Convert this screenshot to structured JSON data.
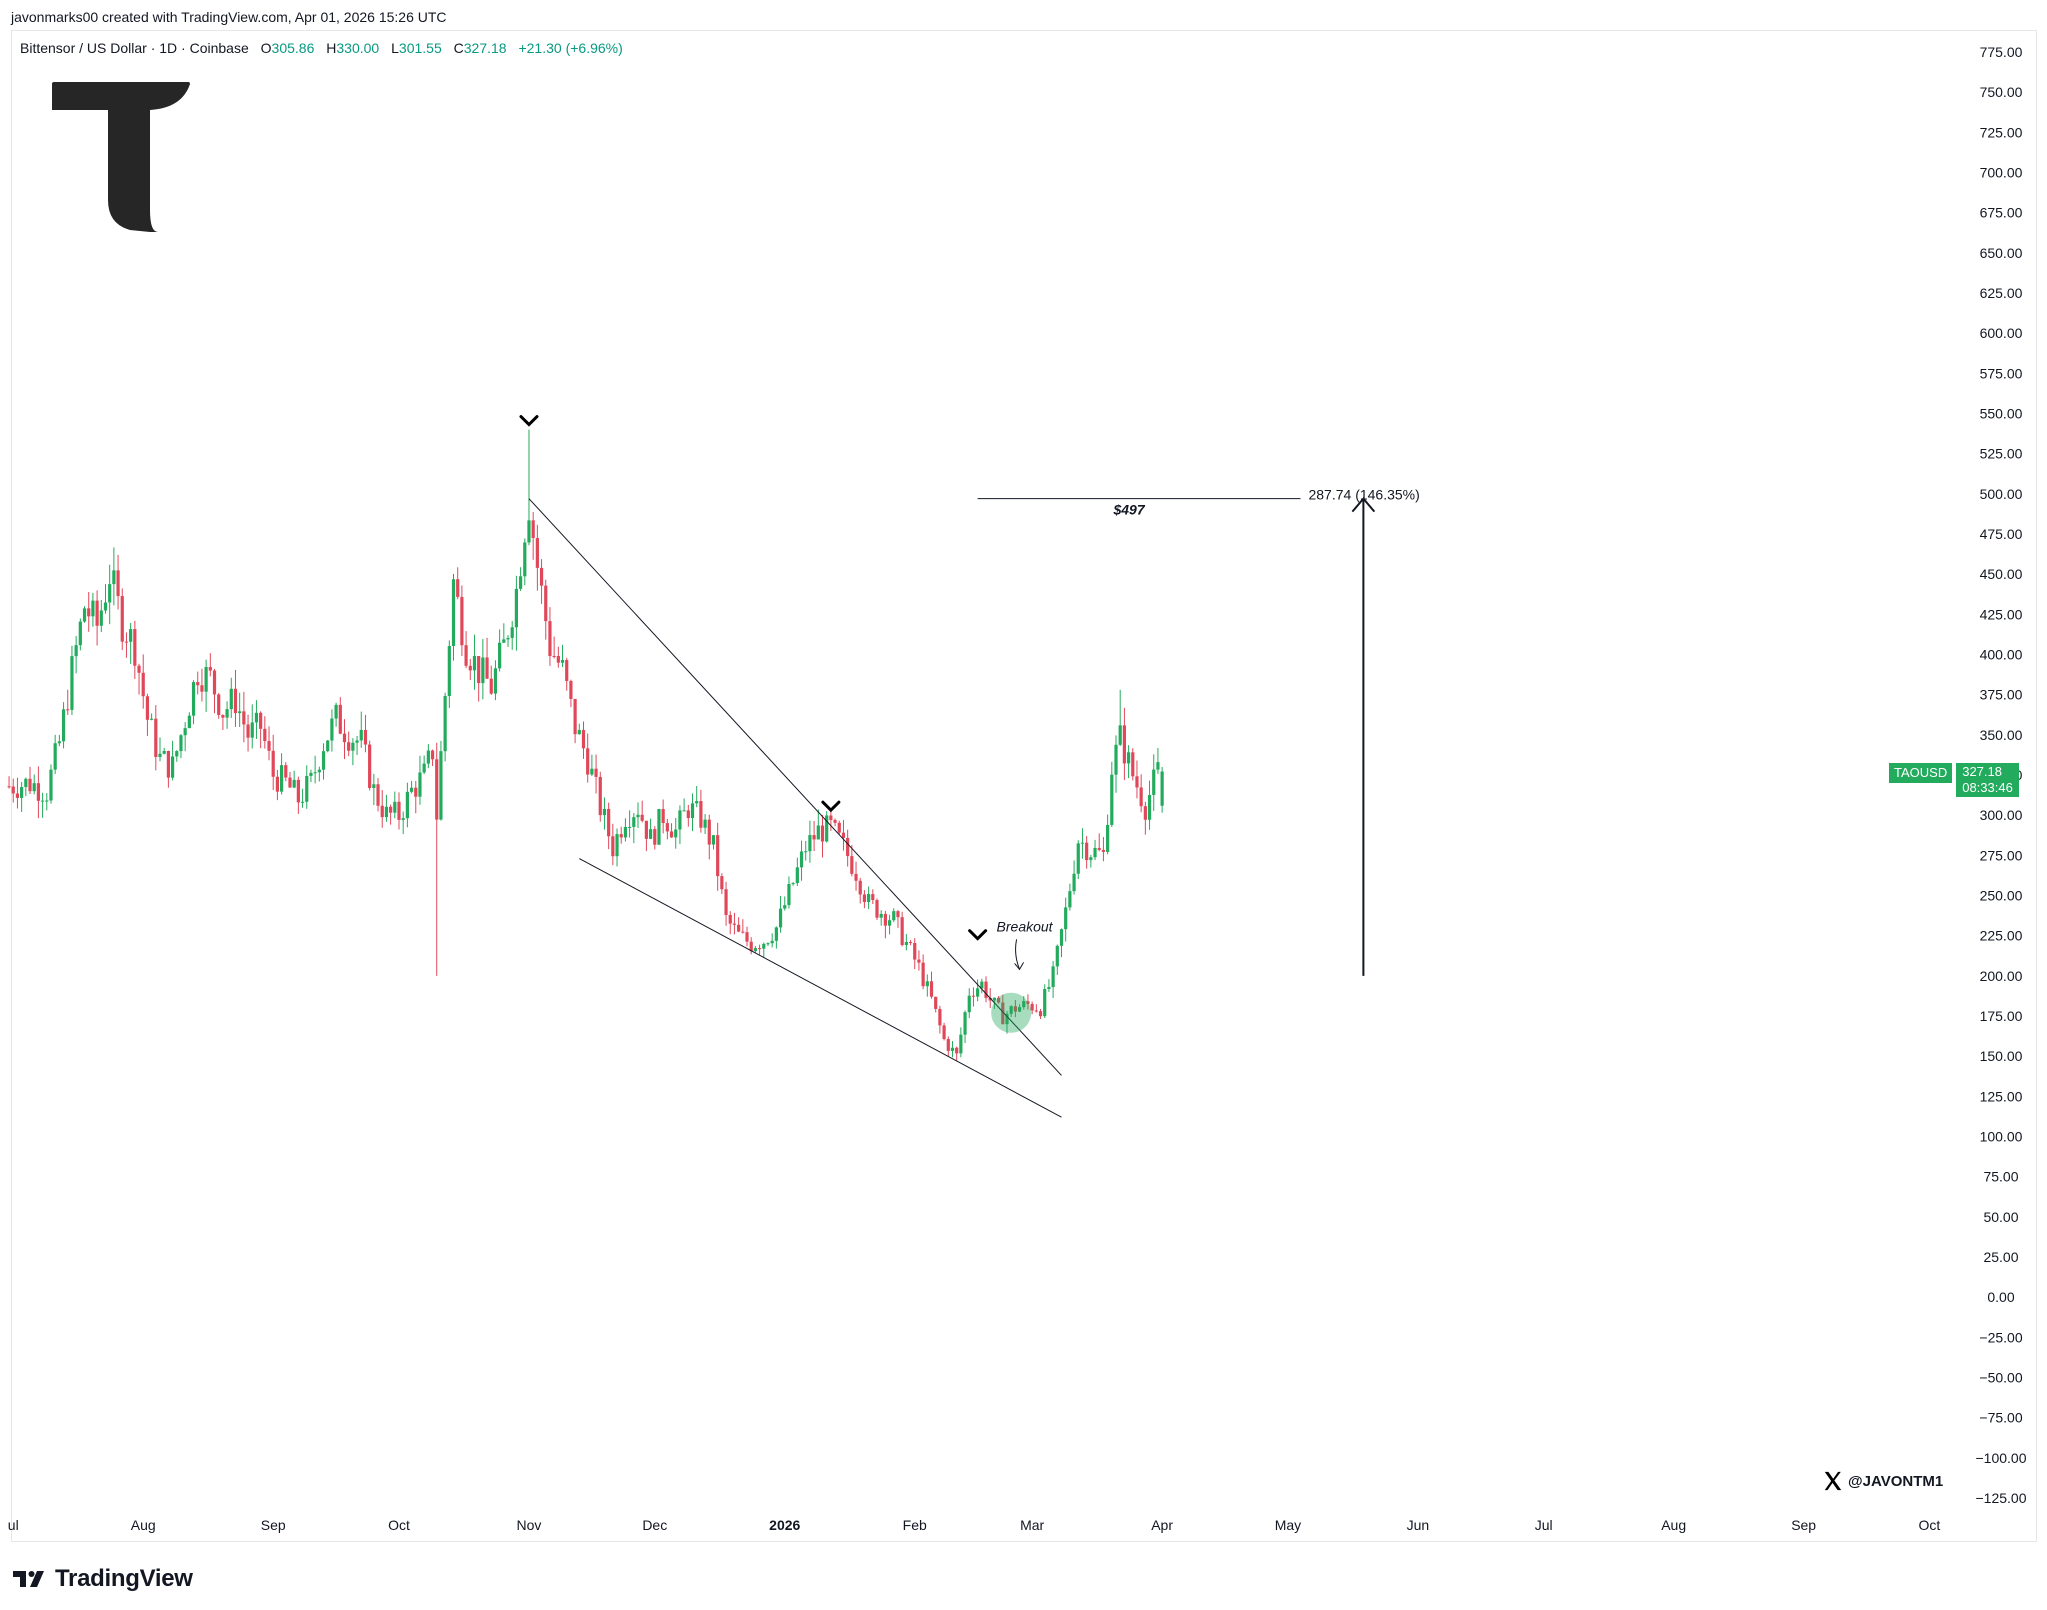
{
  "caption": "javonmarks00 created with TradingView.com, Apr 01, 2026 15:26 UTC",
  "legend": {
    "symbol": "Bittensor / US Dollar · 1D · Coinbase",
    "open_label": "O",
    "open": "305.86",
    "high_label": "H",
    "high": "330.00",
    "low_label": "L",
    "low": "301.55",
    "close_label": "C",
    "close": "327.18",
    "change": "+21.30 (+6.96%)"
  },
  "price_badge": {
    "symbol": "TAOUSD",
    "price": "327.18",
    "countdown": "08:33:46"
  },
  "watermark": {
    "handle": "@JAVONTM1",
    "icon": "x-logo-icon"
  },
  "footer": {
    "brand": "TradingView",
    "icon": "tradingview-logo-icon"
  },
  "brand_logo_icon": "t-logo-icon",
  "colors": {
    "up": "#22ab5c",
    "down": "#e0485a",
    "line": "#131722",
    "highlight": "#22ab5c"
  },
  "chart_data": {
    "type": "candlestick",
    "instrument": "TAOUSD",
    "ylim": [
      -125,
      775
    ],
    "y_ticks": [
      "775.00",
      "750.00",
      "725.00",
      "700.00",
      "675.00",
      "650.00",
      "625.00",
      "600.00",
      "575.00",
      "550.00",
      "525.00",
      "500.00",
      "475.00",
      "450.00",
      "425.00",
      "400.00",
      "375.00",
      "350.00",
      "325.00",
      "300.00",
      "275.00",
      "250.00",
      "225.00",
      "200.00",
      "175.00",
      "150.00",
      "125.00",
      "100.00",
      "75.00",
      "50.00",
      "25.00",
      "0.00",
      "−25.00",
      "−50.00",
      "−75.00",
      "−100.00",
      "−125.00"
    ],
    "x_ticks": [
      {
        "label": "ul",
        "date": "2025-07-01",
        "bold": false
      },
      {
        "label": "Aug",
        "date": "2025-08-01",
        "bold": false
      },
      {
        "label": "Sep",
        "date": "2025-09-01",
        "bold": false
      },
      {
        "label": "Oct",
        "date": "2025-10-01",
        "bold": false
      },
      {
        "label": "Nov",
        "date": "2025-11-01",
        "bold": false
      },
      {
        "label": "Dec",
        "date": "2025-12-01",
        "bold": false
      },
      {
        "label": "2026",
        "date": "2026-01-01",
        "bold": true
      },
      {
        "label": "Feb",
        "date": "2026-02-01",
        "bold": false
      },
      {
        "label": "Mar",
        "date": "2026-03-01",
        "bold": false
      },
      {
        "label": "Apr",
        "date": "2026-04-01",
        "bold": false
      },
      {
        "label": "May",
        "date": "2026-05-01",
        "bold": false
      },
      {
        "label": "Jun",
        "date": "2026-06-01",
        "bold": false
      },
      {
        "label": "Jul",
        "date": "2026-07-01",
        "bold": false
      },
      {
        "label": "Aug",
        "date": "2026-08-01",
        "bold": false
      },
      {
        "label": "Sep",
        "date": "2026-09-01",
        "bold": false
      },
      {
        "label": "Oct",
        "date": "2026-10-01",
        "bold": false
      }
    ],
    "price_path": [
      [
        "2025-06-30",
        318
      ],
      [
        "2025-07-05",
        320
      ],
      [
        "2025-07-09",
        315
      ],
      [
        "2025-07-12",
        345
      ],
      [
        "2025-07-15",
        390
      ],
      [
        "2025-07-18",
        430
      ],
      [
        "2025-07-21",
        418
      ],
      [
        "2025-07-24",
        450
      ],
      [
        "2025-07-27",
        420
      ],
      [
        "2025-07-30",
        405
      ],
      [
        "2025-08-02",
        360
      ],
      [
        "2025-08-05",
        335
      ],
      [
        "2025-08-08",
        330
      ],
      [
        "2025-08-11",
        360
      ],
      [
        "2025-08-14",
        390
      ],
      [
        "2025-08-17",
        385
      ],
      [
        "2025-08-20",
        365
      ],
      [
        "2025-08-23",
        372
      ],
      [
        "2025-08-26",
        350
      ],
      [
        "2025-08-29",
        355
      ],
      [
        "2025-09-01",
        325
      ],
      [
        "2025-09-04",
        320
      ],
      [
        "2025-09-07",
        310
      ],
      [
        "2025-09-10",
        320
      ],
      [
        "2025-09-13",
        345
      ],
      [
        "2025-09-16",
        360
      ],
      [
        "2025-09-19",
        350
      ],
      [
        "2025-09-22",
        345
      ],
      [
        "2025-09-25",
        315
      ],
      [
        "2025-09-28",
        300
      ],
      [
        "2025-10-01",
        300
      ],
      [
        "2025-10-04",
        315
      ],
      [
        "2025-10-07",
        325
      ],
      [
        "2025-10-09",
        340
      ],
      [
        "2025-10-10",
        300
      ],
      [
        "2025-10-12",
        375
      ],
      [
        "2025-10-14",
        445
      ],
      [
        "2025-10-17",
        405
      ],
      [
        "2025-10-20",
        390
      ],
      [
        "2025-10-23",
        380
      ],
      [
        "2025-10-26",
        405
      ],
      [
        "2025-10-29",
        440
      ],
      [
        "2025-10-31",
        480
      ],
      [
        "2025-11-01",
        495
      ],
      [
        "2025-11-03",
        455
      ],
      [
        "2025-11-06",
        405
      ],
      [
        "2025-11-09",
        390
      ],
      [
        "2025-11-12",
        355
      ],
      [
        "2025-11-15",
        335
      ],
      [
        "2025-11-18",
        305
      ],
      [
        "2025-11-21",
        280
      ],
      [
        "2025-11-24",
        300
      ],
      [
        "2025-11-27",
        305
      ],
      [
        "2025-11-30",
        285
      ],
      [
        "2025-12-03",
        300
      ],
      [
        "2025-12-06",
        290
      ],
      [
        "2025-12-09",
        305
      ],
      [
        "2025-12-12",
        298
      ],
      [
        "2025-12-15",
        280
      ],
      [
        "2025-12-18",
        235
      ],
      [
        "2025-12-21",
        225
      ],
      [
        "2025-12-24",
        220
      ],
      [
        "2025-12-27",
        222
      ],
      [
        "2025-12-30",
        230
      ],
      [
        "2026-01-03",
        258
      ],
      [
        "2026-01-06",
        280
      ],
      [
        "2026-01-09",
        290
      ],
      [
        "2026-01-12",
        292
      ],
      [
        "2026-01-15",
        280
      ],
      [
        "2026-01-18",
        265
      ],
      [
        "2026-01-21",
        245
      ],
      [
        "2026-01-24",
        240
      ],
      [
        "2026-01-27",
        235
      ],
      [
        "2026-01-30",
        220
      ],
      [
        "2026-02-02",
        205
      ],
      [
        "2026-02-05",
        185
      ],
      [
        "2026-02-08",
        160
      ],
      [
        "2026-02-11",
        150
      ],
      [
        "2026-02-14",
        190
      ],
      [
        "2026-02-17",
        195
      ],
      [
        "2026-02-19",
        185
      ],
      [
        "2026-02-22",
        175
      ],
      [
        "2026-02-25",
        180
      ],
      [
        "2026-02-28",
        182
      ],
      [
        "2026-03-03",
        180
      ],
      [
        "2026-03-06",
        200
      ],
      [
        "2026-03-09",
        240
      ],
      [
        "2026-03-12",
        285
      ],
      [
        "2026-03-15",
        278
      ],
      [
        "2026-03-18",
        275
      ],
      [
        "2026-03-20",
        330
      ],
      [
        "2026-03-22",
        348
      ],
      [
        "2026-03-25",
        325
      ],
      [
        "2026-03-28",
        306
      ],
      [
        "2026-03-31",
        327
      ]
    ],
    "last_candle": {
      "date": "2026-04-01",
      "open": 305.86,
      "high": 330.0,
      "low": 301.55,
      "close": 327.18
    },
    "wick_extremes": [
      {
        "date": "2025-10-10",
        "low": 200
      },
      {
        "date": "2025-11-01",
        "high": 540
      },
      {
        "date": "2026-03-22",
        "high": 378
      }
    ],
    "annotations": {
      "upper_trendline": {
        "from": [
          "2025-11-01",
          497
        ],
        "to": [
          "2026-03-08",
          138
        ]
      },
      "lower_trendline": {
        "from": [
          "2025-11-13",
          273
        ],
        "to": [
          "2026-03-08",
          112
        ]
      },
      "peak_markers": [
        [
          "2025-11-01",
          545
        ],
        [
          "2026-01-12",
          305
        ],
        [
          "2026-02-16",
          225
        ]
      ],
      "breakout_label": "Breakout",
      "breakout_arrow": [
        "2026-02-26",
        204
      ],
      "breakout_circle": [
        "2026-02-24",
        177
      ],
      "target_line": {
        "from": "2026-02-16",
        "to": "2026-05-04",
        "price": 497
      },
      "target_label": "$497",
      "target_measure": "287.74 (146.35%)",
      "target_arrow": {
        "date": "2026-05-19",
        "from": 200,
        "to": 497
      }
    }
  }
}
